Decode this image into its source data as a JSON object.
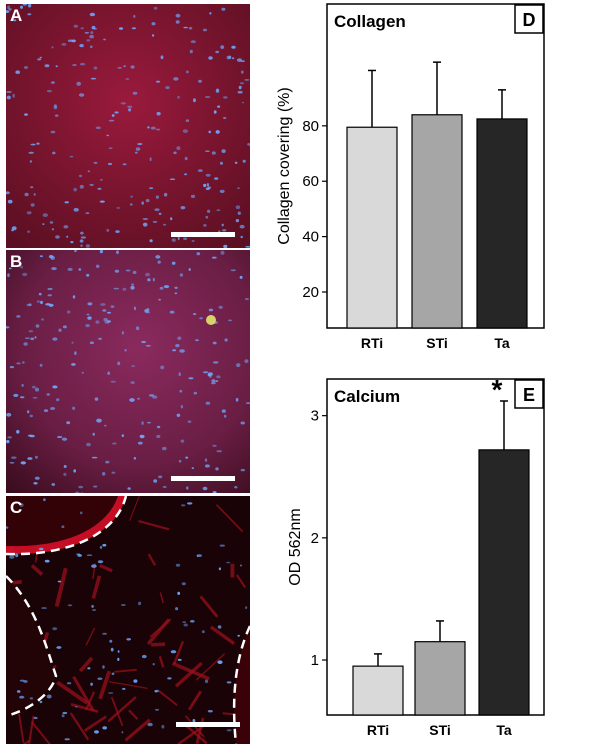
{
  "panels": [
    {
      "id": "A",
      "label": "A"
    },
    {
      "id": "B",
      "label": "B"
    },
    {
      "id": "C",
      "label": "C"
    }
  ],
  "colors": {
    "tissue_red": "#b0152a",
    "nuclei_blue": "#6fa8ff",
    "RTi": "#d9d9d9",
    "STi": "#a6a6a6",
    "Ta": "#262626"
  },
  "chart_data": [
    {
      "type": "bar",
      "panel_label": "D",
      "title": "Collagen",
      "ylabel": "Collagen covering (%)",
      "xlabel": "",
      "categories": [
        "RTi",
        "STi",
        "Ta"
      ],
      "values": [
        79.5,
        84,
        82.5
      ],
      "errors": [
        20.5,
        19,
        10.5
      ],
      "ylim": [
        7,
        124
      ],
      "yticks": [
        20,
        40,
        60,
        80
      ],
      "annotations": []
    },
    {
      "type": "bar",
      "panel_label": "E",
      "title": "Calcium",
      "ylabel": "OD 562nm",
      "xlabel": "",
      "categories": [
        "RTi",
        "STi",
        "Ta"
      ],
      "values": [
        0.95,
        1.15,
        2.72
      ],
      "errors": [
        0.1,
        0.17,
        0.4
      ],
      "ylim": [
        0.55,
        3.3
      ],
      "yticks": [
        1,
        2,
        3
      ],
      "annotations": [
        {
          "category": "Ta",
          "text": "*"
        }
      ]
    }
  ]
}
